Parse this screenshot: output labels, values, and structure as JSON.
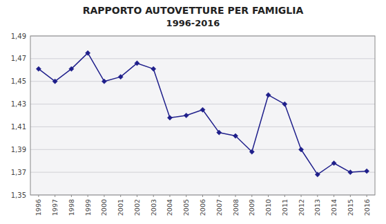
{
  "chart_data": {
    "type": "line",
    "title": "RAPPORTO AUTOVETTURE PER FAMIGLIA",
    "subtitle": "1996-2016",
    "x": [
      1996,
      1997,
      1998,
      1999,
      2000,
      2001,
      2002,
      2003,
      2004,
      2005,
      2006,
      2007,
      2008,
      2009,
      2010,
      2011,
      2012,
      2013,
      2014,
      2015,
      2016
    ],
    "values": [
      1.461,
      1.45,
      1.461,
      1.475,
      1.45,
      1.454,
      1.466,
      1.461,
      1.418,
      1.42,
      1.425,
      1.405,
      1.402,
      1.388,
      1.438,
      1.43,
      1.39,
      1.368,
      1.378,
      1.37,
      1.371
    ],
    "color": "#1F1F8B",
    "marker": "diamond",
    "xlim": [
      1995.5,
      2016.5
    ],
    "xticks": [
      1996,
      1997,
      1998,
      1999,
      2000,
      2001,
      2002,
      2003,
      2004,
      2005,
      2006,
      2007,
      2008,
      2009,
      2010,
      2011,
      2012,
      2013,
      2014,
      2015,
      2016
    ],
    "ylim": [
      1.35,
      1.49
    ],
    "yticks": [
      {
        "value": 1.35,
        "label": "1,35"
      },
      {
        "value": 1.37,
        "label": "1,37"
      },
      {
        "value": 1.39,
        "label": "1,39"
      },
      {
        "value": 1.41,
        "label": "1,41"
      },
      {
        "value": 1.43,
        "label": "1,43"
      },
      {
        "value": 1.45,
        "label": "1,45"
      },
      {
        "value": 1.47,
        "label": "1,47"
      },
      {
        "value": 1.49,
        "label": "1,49"
      }
    ],
    "grid": "y"
  }
}
